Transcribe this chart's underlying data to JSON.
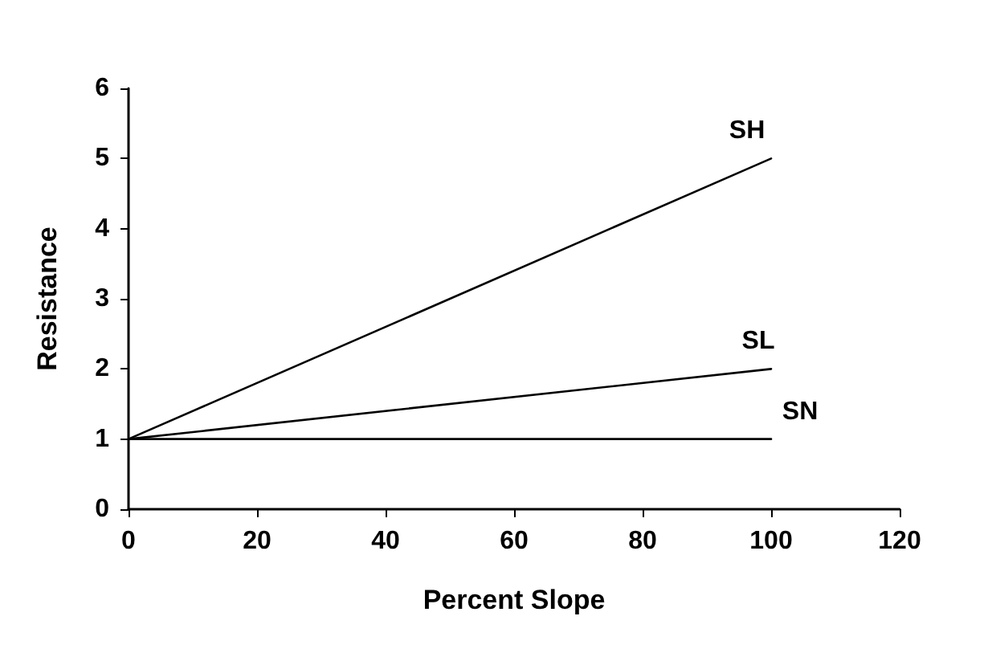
{
  "chart_data": {
    "type": "line",
    "xlabel": "Percent Slope",
    "ylabel": "Resistance",
    "x": [
      0,
      100
    ],
    "series": [
      {
        "name": "SH",
        "color": "#000000",
        "values": [
          1,
          5
        ]
      },
      {
        "name": "SL",
        "color": "#000000",
        "values": [
          1,
          2
        ]
      },
      {
        "name": "SN",
        "color": "#000000",
        "values": [
          1,
          1
        ]
      }
    ],
    "xlim": [
      0,
      120
    ],
    "xticks": [
      0,
      20,
      40,
      60,
      80,
      100,
      120
    ],
    "ylim": [
      0,
      6
    ],
    "yticks": [
      0,
      1,
      2,
      3,
      4,
      5,
      6
    ],
    "grid": false,
    "legend": false,
    "marker": "none",
    "line_style": "solid"
  }
}
